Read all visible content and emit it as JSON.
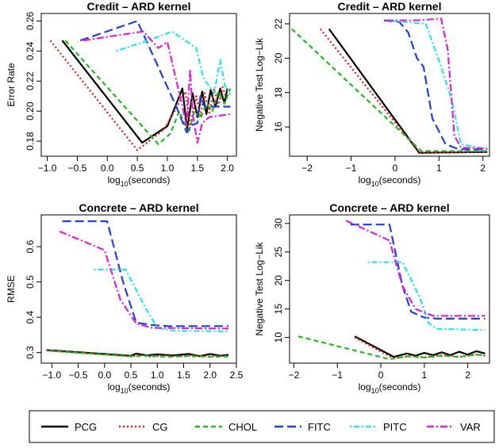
{
  "legend": {
    "items": [
      {
        "name": "PCG",
        "color": "#000000",
        "dash": "solid"
      },
      {
        "name": "CG",
        "color": "#e41a1c",
        "dash": "dotted"
      },
      {
        "name": "CHOL",
        "color": "#22bb22",
        "dash": "dashed"
      },
      {
        "name": "FITC",
        "color": "#1f3fe0",
        "dash": "longdash"
      },
      {
        "name": "PITC",
        "color": "#22e5ee",
        "dash": "dotdash"
      },
      {
        "name": "VAR",
        "color": "#e020d8",
        "dash": "twodash"
      }
    ]
  },
  "chart_data": [
    {
      "type": "line",
      "title": "Credit – ARD kernel",
      "xlabel_main": "log",
      "xlabel_sub": "10",
      "xlabel_rest": "(seconds)",
      "ylabel": "Error Rate",
      "xlim": [
        -1.1,
        2.15
      ],
      "ylim": [
        0.17,
        0.265
      ],
      "xticks": [
        -1.0,
        -0.5,
        0.0,
        0.5,
        1.0,
        1.5,
        2.0
      ],
      "xticklabels": [
        "−1.0",
        "−0.5",
        "0.0",
        "0.5",
        "1.0",
        "1.5",
        "2.0"
      ],
      "yticks": [
        0.18,
        0.2,
        0.22,
        0.24,
        0.26
      ],
      "yticklabels": [
        "0.18",
        "0.20",
        "0.22",
        "0.24",
        "0.26"
      ],
      "series": [
        {
          "name": "PCG",
          "points": [
            [
              -0.75,
              0.247
            ],
            [
              0.58,
              0.179
            ],
            [
              1.0,
              0.19
            ],
            [
              1.25,
              0.215
            ],
            [
              1.33,
              0.188
            ],
            [
              1.42,
              0.212
            ],
            [
              1.5,
              0.196
            ],
            [
              1.58,
              0.213
            ],
            [
              1.65,
              0.198
            ],
            [
              1.72,
              0.214
            ],
            [
              1.8,
              0.203
            ],
            [
              1.88,
              0.215
            ],
            [
              1.95,
              0.205
            ],
            [
              2.0,
              0.215
            ]
          ]
        },
        {
          "name": "CG",
          "points": [
            [
              -0.95,
              0.247
            ],
            [
              0.5,
              0.174
            ],
            [
              0.95,
              0.188
            ],
            [
              1.3,
              0.213
            ],
            [
              1.38,
              0.19
            ],
            [
              1.48,
              0.21
            ],
            [
              1.55,
              0.197
            ],
            [
              1.62,
              0.212
            ],
            [
              1.7,
              0.199
            ],
            [
              1.78,
              0.215
            ],
            [
              1.85,
              0.203
            ],
            [
              1.92,
              0.216
            ],
            [
              2.0,
              0.207
            ]
          ]
        },
        {
          "name": "CHOL",
          "points": [
            [
              -0.7,
              0.247
            ],
            [
              0.85,
              0.178
            ],
            [
              1.05,
              0.185
            ],
            [
              1.2,
              0.2
            ],
            [
              1.35,
              0.185
            ],
            [
              1.45,
              0.2
            ],
            [
              1.55,
              0.195
            ],
            [
              1.65,
              0.205
            ],
            [
              1.75,
              0.2
            ],
            [
              1.85,
              0.213
            ],
            [
              1.95,
              0.205
            ],
            [
              2.05,
              0.215
            ]
          ]
        },
        {
          "name": "FITC",
          "points": [
            [
              -0.45,
              0.247
            ],
            [
              0.5,
              0.26
            ],
            [
              1.15,
              0.203
            ],
            [
              1.32,
              0.186
            ],
            [
              1.42,
              0.191
            ],
            [
              1.5,
              0.192
            ],
            [
              1.55,
              0.21
            ],
            [
              1.62,
              0.203
            ],
            [
              2.05,
              0.203
            ]
          ]
        },
        {
          "name": "PITC",
          "points": [
            [
              0.15,
              0.24
            ],
            [
              0.75,
              0.248
            ],
            [
              1.08,
              0.253
            ],
            [
              1.48,
              0.242
            ],
            [
              1.6,
              0.222
            ],
            [
              1.78,
              0.212
            ],
            [
              1.88,
              0.234
            ],
            [
              1.96,
              0.217
            ],
            [
              2.05,
              0.211
            ]
          ]
        },
        {
          "name": "VAR",
          "points": [
            [
              -0.4,
              0.247
            ],
            [
              0.6,
              0.253
            ],
            [
              0.85,
              0.242
            ],
            [
              1.0,
              0.246
            ],
            [
              1.25,
              0.203
            ],
            [
              1.32,
              0.19
            ],
            [
              1.38,
              0.228
            ],
            [
              1.42,
              0.199
            ],
            [
              1.5,
              0.179
            ],
            [
              1.58,
              0.192
            ],
            [
              1.7,
              0.196
            ],
            [
              2.05,
              0.198
            ]
          ]
        }
      ]
    },
    {
      "type": "line",
      "title": "Credit – ARD kernel",
      "xlabel_main": "log",
      "xlabel_sub": "10",
      "xlabel_rest": "(seconds)",
      "ylabel": "Negative Test Log−Lik",
      "xlim": [
        -2.4,
        2.15
      ],
      "ylim": [
        14.3,
        22.6
      ],
      "xticks": [
        -2,
        -1,
        0,
        1,
        2
      ],
      "xticklabels": [
        "−2",
        "−1",
        "0",
        "1",
        "2"
      ],
      "yticks": [
        16,
        18,
        20,
        22
      ],
      "yticklabels": [
        "16",
        "18",
        "20",
        "22"
      ],
      "series": [
        {
          "name": "PCG",
          "points": [
            [
              -1.5,
              21.7
            ],
            [
              0.55,
              14.5
            ],
            [
              2.1,
              14.55
            ]
          ]
        },
        {
          "name": "CG",
          "points": [
            [
              -1.7,
              21.7
            ],
            [
              0.55,
              14.5
            ],
            [
              2.1,
              14.55
            ]
          ]
        },
        {
          "name": "CHOL",
          "points": [
            [
              -2.35,
              21.7
            ],
            [
              0.6,
              14.6
            ],
            [
              2.1,
              14.6
            ]
          ]
        },
        {
          "name": "FITC",
          "points": [
            [
              -0.25,
              22.2
            ],
            [
              0.1,
              22.1
            ],
            [
              0.3,
              21.5
            ],
            [
              0.5,
              20.0
            ],
            [
              0.65,
              19.5
            ],
            [
              0.85,
              16.5
            ],
            [
              1.15,
              15.0
            ],
            [
              1.45,
              14.7
            ],
            [
              2.1,
              14.7
            ]
          ]
        },
        {
          "name": "PITC",
          "points": [
            [
              -0.2,
              22.2
            ],
            [
              0.7,
              22.0
            ],
            [
              1.05,
              19.5
            ],
            [
              1.3,
              17.5
            ],
            [
              1.5,
              15.0
            ],
            [
              1.7,
              14.9
            ],
            [
              2.1,
              14.7
            ]
          ]
        },
        {
          "name": "VAR",
          "points": [
            [
              -0.2,
              22.2
            ],
            [
              0.5,
              22.2
            ],
            [
              1.05,
              22.3
            ],
            [
              1.2,
              20.5
            ],
            [
              1.35,
              15.5
            ],
            [
              1.5,
              14.8
            ],
            [
              2.1,
              14.75
            ]
          ]
        }
      ]
    },
    {
      "type": "line",
      "title": "Concrete – ARD kernel",
      "xlabel_main": "log",
      "xlabel_sub": "10",
      "xlabel_rest": "(seconds)",
      "ylabel": "RMSE",
      "xlim": [
        -1.2,
        2.5
      ],
      "ylim": [
        0.27,
        0.69
      ],
      "xticks": [
        -1.0,
        -0.5,
        0.0,
        0.5,
        1.0,
        1.5,
        2.0,
        2.5
      ],
      "xticklabels": [
        "−1.0",
        "−0.5",
        "0.0",
        "0.5",
        "1.0",
        "1.5",
        "2.0",
        "2.5"
      ],
      "yticks": [
        0.3,
        0.4,
        0.5,
        0.6
      ],
      "yticklabels": [
        "0.3",
        "0.4",
        "0.5",
        "0.6"
      ],
      "series": [
        {
          "name": "PCG",
          "points": [
            [
              -1.1,
              0.307
            ],
            [
              0.5,
              0.291
            ],
            [
              0.6,
              0.297
            ],
            [
              0.8,
              0.292
            ],
            [
              1.0,
              0.295
            ],
            [
              1.3,
              0.292
            ],
            [
              1.6,
              0.296
            ],
            [
              1.8,
              0.29
            ],
            [
              2.0,
              0.296
            ],
            [
              2.2,
              0.291
            ],
            [
              2.35,
              0.294
            ]
          ]
        },
        {
          "name": "CG",
          "points": [
            [
              -1.1,
              0.306
            ],
            [
              0.5,
              0.289
            ],
            [
              0.7,
              0.293
            ],
            [
              0.9,
              0.288
            ],
            [
              1.1,
              0.292
            ],
            [
              1.4,
              0.289
            ],
            [
              1.7,
              0.292
            ],
            [
              2.0,
              0.289
            ],
            [
              2.35,
              0.291
            ]
          ]
        },
        {
          "name": "CHOL",
          "points": [
            [
              -1.05,
              0.305
            ],
            [
              0.5,
              0.289
            ],
            [
              0.8,
              0.291
            ],
            [
              1.2,
              0.288
            ],
            [
              1.6,
              0.29
            ],
            [
              2.0,
              0.288
            ],
            [
              2.35,
              0.289
            ]
          ]
        },
        {
          "name": "FITC",
          "points": [
            [
              -0.8,
              0.672
            ],
            [
              0.05,
              0.672
            ],
            [
              0.35,
              0.5
            ],
            [
              0.6,
              0.385
            ],
            [
              0.9,
              0.378
            ],
            [
              1.2,
              0.375
            ],
            [
              2.35,
              0.375
            ]
          ]
        },
        {
          "name": "PITC",
          "points": [
            [
              -0.2,
              0.535
            ],
            [
              0.4,
              0.535
            ],
            [
              0.8,
              0.42
            ],
            [
              1.0,
              0.37
            ],
            [
              1.3,
              0.362
            ],
            [
              2.35,
              0.36
            ]
          ]
        },
        {
          "name": "VAR",
          "points": [
            [
              -0.85,
              0.643
            ],
            [
              0.0,
              0.59
            ],
            [
              0.3,
              0.45
            ],
            [
              0.6,
              0.382
            ],
            [
              0.9,
              0.37
            ],
            [
              2.35,
              0.368
            ]
          ]
        }
      ]
    },
    {
      "type": "line",
      "title": "Concrete – ARD kernel",
      "xlabel_main": "log",
      "xlabel_sub": "10",
      "xlabel_rest": "(seconds)",
      "ylabel": "Negative Test Log−Lik",
      "xlim": [
        -2.1,
        2.5
      ],
      "ylim": [
        5.5,
        31.5
      ],
      "xticks": [
        -2,
        -1,
        0,
        1,
        2
      ],
      "xticklabels": [
        "−2",
        "−1",
        "0",
        "1",
        "2"
      ],
      "yticks": [
        10,
        15,
        20,
        25,
        30
      ],
      "yticklabels": [
        "10",
        "15",
        "20",
        "25",
        "30"
      ],
      "series": [
        {
          "name": "PCG",
          "points": [
            [
              -0.6,
              10.2
            ],
            [
              0.3,
              6.6
            ],
            [
              0.6,
              7.2
            ],
            [
              0.8,
              6.8
            ],
            [
              1.0,
              7.3
            ],
            [
              1.2,
              6.9
            ],
            [
              1.4,
              7.4
            ],
            [
              1.6,
              6.9
            ],
            [
              1.8,
              7.5
            ],
            [
              2.0,
              7.0
            ],
            [
              2.2,
              7.6
            ],
            [
              2.4,
              7.2
            ]
          ]
        },
        {
          "name": "CG",
          "points": [
            [
              -0.6,
              10.0
            ],
            [
              0.3,
              6.3
            ],
            [
              0.7,
              6.8
            ],
            [
              1.0,
              6.5
            ],
            [
              1.4,
              6.9
            ],
            [
              1.8,
              6.6
            ],
            [
              2.2,
              7.0
            ],
            [
              2.4,
              6.8
            ]
          ]
        },
        {
          "name": "CHOL",
          "points": [
            [
              -1.9,
              10.2
            ],
            [
              0.2,
              6.2
            ],
            [
              0.6,
              6.7
            ],
            [
              1.0,
              6.5
            ],
            [
              1.4,
              6.8
            ],
            [
              1.8,
              6.6
            ],
            [
              2.2,
              7.0
            ],
            [
              2.4,
              6.9
            ]
          ]
        },
        {
          "name": "FITC",
          "points": [
            [
              -0.7,
              29.8
            ],
            [
              0.2,
              29.8
            ],
            [
              0.5,
              19.0
            ],
            [
              0.7,
              14.5
            ],
            [
              1.0,
              13.5
            ],
            [
              1.3,
              13.3
            ],
            [
              2.4,
              13.3
            ]
          ]
        },
        {
          "name": "PITC",
          "points": [
            [
              -0.3,
              23.2
            ],
            [
              0.5,
              23.2
            ],
            [
              0.9,
              17.0
            ],
            [
              1.1,
              12.5
            ],
            [
              1.3,
              11.5
            ],
            [
              2.4,
              11.3
            ]
          ]
        },
        {
          "name": "VAR",
          "points": [
            [
              -0.8,
              30.5
            ],
            [
              0.2,
              27.0
            ],
            [
              0.5,
              19.0
            ],
            [
              0.8,
              15.0
            ],
            [
              1.2,
              13.8
            ],
            [
              2.4,
              13.8
            ]
          ]
        }
      ]
    }
  ]
}
